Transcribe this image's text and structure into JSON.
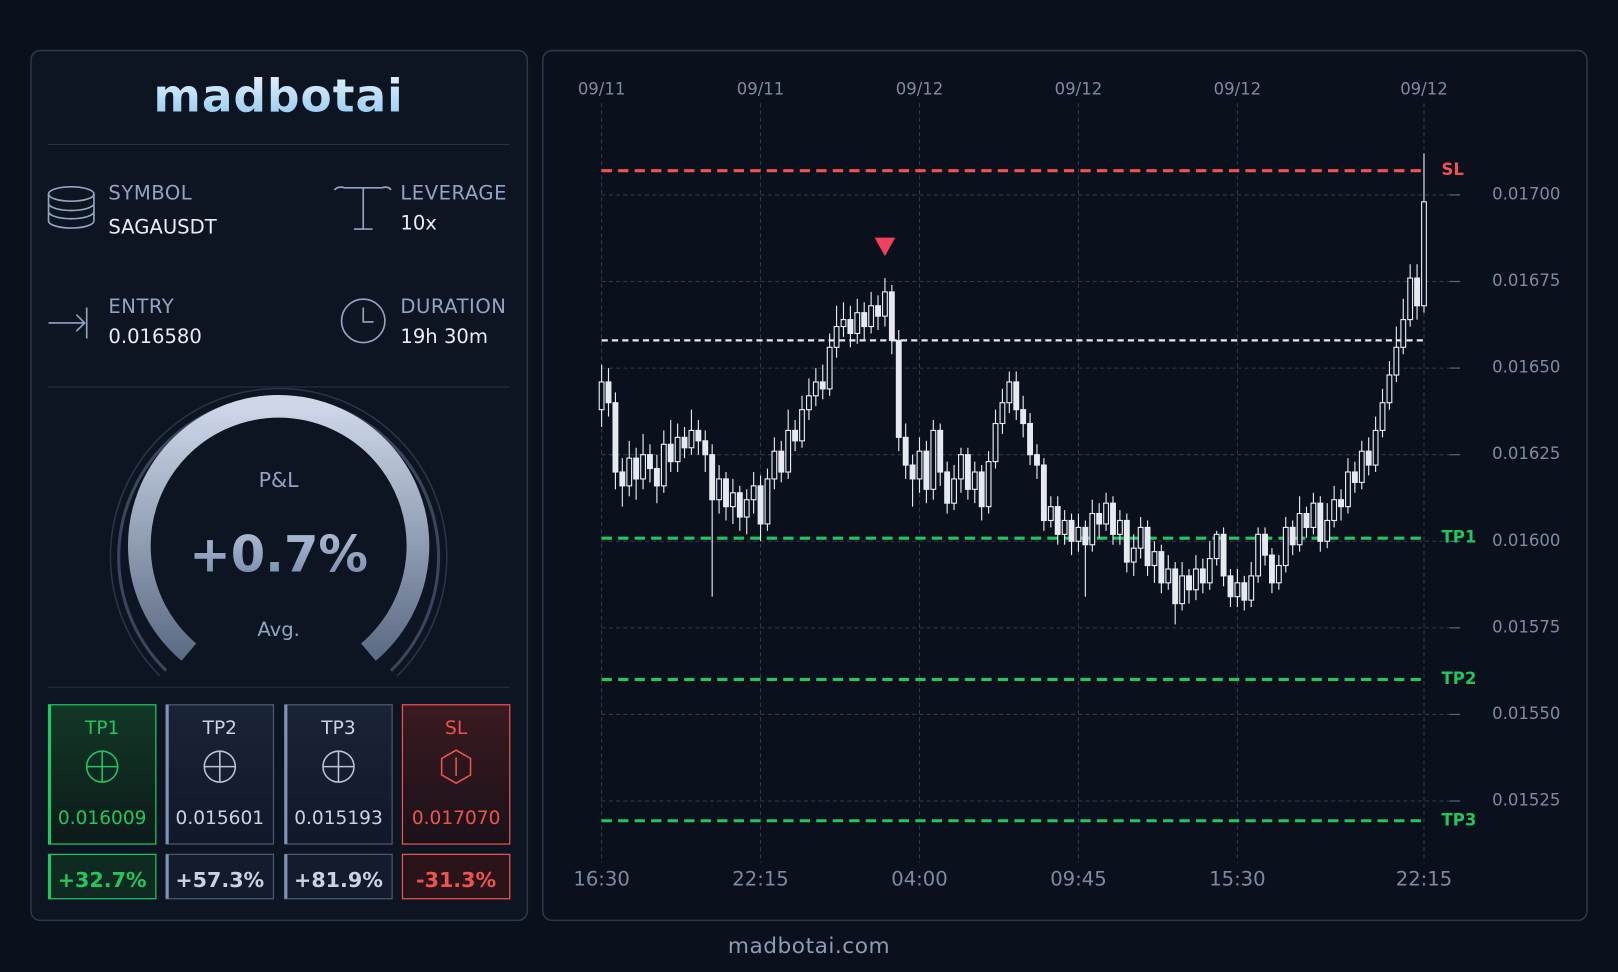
{
  "brand": "madbotai",
  "info": [
    {
      "label": "SYMBOL",
      "value": "SAGAUSDT"
    },
    {
      "label": "LEVERAGE",
      "value": "10x"
    },
    {
      "label": "ENTRY",
      "value": "0.016580"
    },
    {
      "label": "DURATION",
      "value": "19h 30m"
    }
  ],
  "gauge": {
    "label": "P&L",
    "value": "+0.7%",
    "sublabel": "Avg."
  },
  "targets": [
    {
      "label": "TP1",
      "price": "0.016009",
      "change": "+32.7%"
    },
    {
      "label": "TP2",
      "price": "0.015601",
      "change": "+57.3%"
    },
    {
      "label": "TP3",
      "price": "0.015193",
      "change": "+81.9%"
    },
    {
      "label": "SL",
      "price": "0.017070",
      "change": "-31.3%"
    }
  ],
  "chart_data": {
    "type": "candlestick",
    "candle_color": "#e6eaf0",
    "grid": true,
    "categories": [
      "16:30",
      null,
      null,
      null,
      null,
      null,
      null,
      null,
      null,
      null,
      null,
      null,
      null,
      null,
      null,
      null,
      null,
      null,
      null,
      null,
      null,
      null,
      null,
      "22:15",
      null,
      null,
      null,
      null,
      null,
      null,
      null,
      null,
      null,
      null,
      null,
      null,
      null,
      null,
      null,
      null,
      null,
      null,
      null,
      null,
      null,
      null,
      "04:00",
      null,
      null,
      null,
      null,
      null,
      null,
      null,
      null,
      null,
      null,
      null,
      null,
      null,
      null,
      null,
      null,
      null,
      null,
      null,
      null,
      null,
      null,
      "09:45",
      null,
      null,
      null,
      null,
      null,
      null,
      null,
      null,
      null,
      null,
      null,
      null,
      null,
      null,
      null,
      null,
      null,
      null,
      null,
      null,
      null,
      null,
      "15:30",
      null,
      null,
      null,
      null,
      null,
      null,
      null,
      null,
      null,
      null,
      null,
      null,
      null,
      null,
      null,
      null,
      null,
      null,
      null,
      null,
      null,
      null,
      null,
      null,
      null,
      null,
      "22:15"
    ],
    "dates": [
      "09/11",
      null,
      null,
      null,
      null,
      null,
      null,
      null,
      null,
      null,
      null,
      null,
      null,
      null,
      null,
      null,
      null,
      null,
      null,
      null,
      null,
      null,
      null,
      "09/11",
      null,
      null,
      null,
      null,
      null,
      null,
      null,
      null,
      null,
      null,
      null,
      null,
      null,
      null,
      null,
      null,
      null,
      null,
      null,
      null,
      null,
      null,
      "09/12",
      null,
      null,
      null,
      null,
      null,
      null,
      null,
      null,
      null,
      null,
      null,
      null,
      null,
      null,
      null,
      null,
      null,
      null,
      null,
      null,
      null,
      null,
      "09/12",
      null,
      null,
      null,
      null,
      null,
      null,
      null,
      null,
      null,
      null,
      null,
      null,
      null,
      null,
      null,
      null,
      null,
      null,
      null,
      null,
      null,
      null,
      "09/12",
      null,
      null,
      null,
      null,
      null,
      null,
      null,
      null,
      null,
      null,
      null,
      null,
      null,
      null,
      null,
      null,
      null,
      null,
      null,
      null,
      null,
      null,
      null,
      null,
      null,
      null,
      "09/12"
    ],
    "open": [
      0.01638,
      0.01646,
      0.0164,
      0.0162,
      0.01616,
      0.01624,
      0.01618,
      0.01625,
      0.01621,
      0.01616,
      0.01628,
      0.01623,
      0.0163,
      0.01627,
      0.01632,
      0.01629,
      0.01625,
      0.01612,
      0.01618,
      0.0161,
      0.01614,
      0.01607,
      0.01612,
      0.01616,
      0.01605,
      0.01618,
      0.01626,
      0.0162,
      0.01632,
      0.01629,
      0.01638,
      0.01642,
      0.01646,
      0.01644,
      0.01656,
      0.01662,
      0.01664,
      0.0166,
      0.01666,
      0.01662,
      0.01668,
      0.01665,
      0.01672,
      0.01658,
      0.0163,
      0.01622,
      0.01618,
      0.01626,
      0.01615,
      0.01632,
      0.0162,
      0.01611,
      0.01618,
      0.01625,
      0.01615,
      0.0162,
      0.0161,
      0.01623,
      0.01634,
      0.0164,
      0.01646,
      0.01638,
      0.01634,
      0.01625,
      0.01622,
      0.01606,
      0.0161,
      0.01602,
      0.01606,
      0.016,
      0.01604,
      0.01599,
      0.01608,
      0.01605,
      0.01611,
      0.01602,
      0.01606,
      0.01594,
      0.01598,
      0.01604,
      0.01593,
      0.01597,
      0.01588,
      0.01592,
      0.01582,
      0.0159,
      0.01586,
      0.01592,
      0.01588,
      0.01595,
      0.01602,
      0.0159,
      0.01584,
      0.01588,
      0.01583,
      0.0159,
      0.01602,
      0.01596,
      0.01588,
      0.01593,
      0.01604,
      0.01599,
      0.01608,
      0.01604,
      0.01611,
      0.016,
      0.01606,
      0.01612,
      0.0161,
      0.0162,
      0.01617,
      0.01626,
      0.01622,
      0.01632,
      0.0164,
      0.01648,
      0.01656,
      0.01664,
      0.01676,
      0.01668
    ],
    "high": [
      0.01651,
      0.0165,
      0.01643,
      0.01624,
      0.01629,
      0.01627,
      0.01631,
      0.01628,
      0.01625,
      0.01632,
      0.01635,
      0.01634,
      0.01633,
      0.01638,
      0.01635,
      0.01632,
      0.01628,
      0.01622,
      0.0162,
      0.01618,
      0.01616,
      0.01615,
      0.0162,
      0.01619,
      0.01621,
      0.0163,
      0.01629,
      0.01638,
      0.01635,
      0.01642,
      0.01647,
      0.0165,
      0.01651,
      0.0166,
      0.01668,
      0.01669,
      0.01668,
      0.0167,
      0.01669,
      0.01672,
      0.01671,
      0.01676,
      0.01674,
      0.01661,
      0.01634,
      0.01625,
      0.0163,
      0.01629,
      0.01635,
      0.01634,
      0.01623,
      0.01622,
      0.01627,
      0.01627,
      0.01623,
      0.01622,
      0.01626,
      0.01638,
      0.01644,
      0.01649,
      0.01649,
      0.01642,
      0.01637,
      0.01628,
      0.01624,
      0.01613,
      0.01613,
      0.01609,
      0.01608,
      0.01608,
      0.01606,
      0.01612,
      0.01611,
      0.01614,
      0.01613,
      0.01609,
      0.01608,
      0.01602,
      0.01607,
      0.01606,
      0.016,
      0.01599,
      0.01596,
      0.01594,
      0.01594,
      0.01592,
      0.01596,
      0.01595,
      0.016,
      0.01603,
      0.01604,
      0.01592,
      0.01592,
      0.0159,
      0.01594,
      0.01604,
      0.01604,
      0.01598,
      0.01596,
      0.01607,
      0.01606,
      0.01613,
      0.0161,
      0.01614,
      0.01613,
      0.01611,
      0.01616,
      0.01615,
      0.01624,
      0.01623,
      0.01629,
      0.0163,
      0.01636,
      0.01644,
      0.01652,
      0.01662,
      0.0167,
      0.0168,
      0.0168,
      0.01712
    ],
    "low": [
      0.01633,
      0.01636,
      0.01615,
      0.0161,
      0.01613,
      0.01612,
      0.01615,
      0.01617,
      0.01611,
      0.01614,
      0.0162,
      0.0162,
      0.01624,
      0.01625,
      0.01625,
      0.0162,
      0.01584,
      0.01608,
      0.01606,
      0.01605,
      0.01603,
      0.01602,
      0.01608,
      0.016,
      0.01603,
      0.01615,
      0.01617,
      0.01618,
      0.01626,
      0.01627,
      0.01635,
      0.01639,
      0.01641,
      0.01642,
      0.01653,
      0.01659,
      0.01656,
      0.01657,
      0.01658,
      0.0166,
      0.01661,
      0.01662,
      0.01654,
      0.01626,
      0.01618,
      0.0161,
      0.01614,
      0.01611,
      0.01612,
      0.01616,
      0.01608,
      0.01609,
      0.01614,
      0.01612,
      0.01611,
      0.01606,
      0.01608,
      0.01621,
      0.01631,
      0.01637,
      0.01635,
      0.0163,
      0.01622,
      0.01618,
      0.01603,
      0.01604,
      0.01599,
      0.01599,
      0.01596,
      0.01597,
      0.01584,
      0.01597,
      0.01601,
      0.01603,
      0.01599,
      0.01599,
      0.01591,
      0.0159,
      0.01595,
      0.0159,
      0.01588,
      0.01585,
      0.01586,
      0.01576,
      0.0158,
      0.01582,
      0.01583,
      0.01585,
      0.01586,
      0.01593,
      0.01587,
      0.01581,
      0.01581,
      0.0158,
      0.01581,
      0.01588,
      0.01593,
      0.01585,
      0.01586,
      0.01591,
      0.01596,
      0.01597,
      0.01601,
      0.01602,
      0.01597,
      0.01598,
      0.01604,
      0.01606,
      0.01608,
      0.01614,
      0.01615,
      0.01619,
      0.0162,
      0.0163,
      0.01638,
      0.01646,
      0.01654,
      0.01662,
      0.01664,
      0.01666
    ],
    "close": [
      0.01646,
      0.0164,
      0.0162,
      0.01616,
      0.01624,
      0.01618,
      0.01625,
      0.01621,
      0.01616,
      0.01628,
      0.01623,
      0.0163,
      0.01627,
      0.01632,
      0.01629,
      0.01625,
      0.01612,
      0.01618,
      0.0161,
      0.01614,
      0.01607,
      0.01612,
      0.01616,
      0.01605,
      0.01618,
      0.01626,
      0.0162,
      0.01632,
      0.01629,
      0.01638,
      0.01642,
      0.01646,
      0.01644,
      0.01656,
      0.01662,
      0.01664,
      0.0166,
      0.01666,
      0.01662,
      0.01668,
      0.01665,
      0.01672,
      0.01658,
      0.0163,
      0.01622,
      0.01618,
      0.01626,
      0.01615,
      0.01632,
      0.0162,
      0.01611,
      0.01618,
      0.01625,
      0.01615,
      0.0162,
      0.0161,
      0.01623,
      0.01634,
      0.0164,
      0.01646,
      0.01638,
      0.01634,
      0.01625,
      0.01622,
      0.01606,
      0.0161,
      0.01602,
      0.01606,
      0.016,
      0.01604,
      0.01599,
      0.01608,
      0.01605,
      0.01611,
      0.01602,
      0.01606,
      0.01594,
      0.01598,
      0.01604,
      0.01593,
      0.01597,
      0.01588,
      0.01592,
      0.01582,
      0.0159,
      0.01586,
      0.01592,
      0.01588,
      0.01595,
      0.01602,
      0.0159,
      0.01584,
      0.01588,
      0.01583,
      0.0159,
      0.01602,
      0.01596,
      0.01588,
      0.01593,
      0.01604,
      0.01599,
      0.01608,
      0.01604,
      0.01611,
      0.016,
      0.01606,
      0.01612,
      0.0161,
      0.0162,
      0.01617,
      0.01626,
      0.01622,
      0.01632,
      0.0164,
      0.01648,
      0.01656,
      0.01664,
      0.01676,
      0.01668,
      0.01698
    ],
    "ylim": [
      0.01509,
      0.01725
    ],
    "yticks": [
      0.01525,
      {
        "value": 0.0155,
        "label": "0.01550"
      },
      0.01575,
      {
        "value": 0.016,
        "label": "0.01600"
      },
      0.01625,
      {
        "value": 0.0165,
        "label": "0.01650"
      },
      0.01675,
      {
        "value": 0.017,
        "label": "0.01700"
      }
    ],
    "levels": [
      {
        "name": "SL",
        "value": 0.01707,
        "color": "#ef5350"
      },
      {
        "value": 0.01658,
        "color": "#e5e7eb"
      },
      {
        "name": "TP1",
        "value": 0.016009,
        "color": "#22c55e"
      },
      {
        "name": "TP2",
        "value": 0.015601,
        "color": "#22c55e"
      },
      {
        "name": "TP3",
        "value": 0.015193,
        "color": "#22c55e"
      }
    ],
    "signals": [
      {
        "x_index": 41,
        "value": 0.01685,
        "color": "#f43f5e"
      }
    ]
  },
  "footer": "madbotai.com"
}
